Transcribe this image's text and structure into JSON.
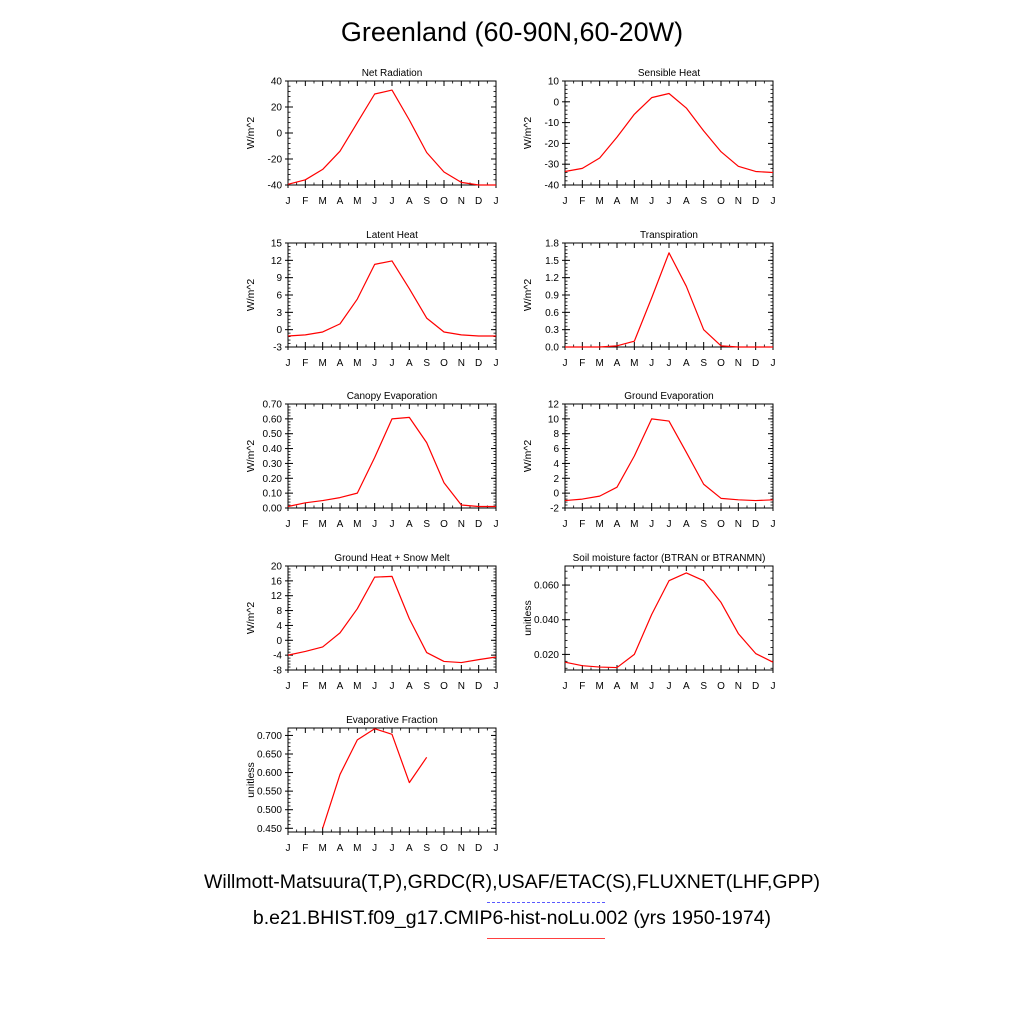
{
  "figure": {
    "title": "Greenland (60-90N,60-20W)",
    "legend": {
      "observations": "Willmott-Matsuura(T,P),GRDC(R),USAF/ETAC(S),FLUXNET(LHF,GPP)",
      "model": "b.e21.BHIST.f09_g17.CMIP6-hist-noLu.002 (yrs 1950-1974)",
      "observations_color": "#5a5aff",
      "model_color": "#ff0000"
    }
  },
  "chart_data": [
    {
      "type": "line",
      "title": "Net Radiation",
      "ylabel": "W/m^2",
      "x": [
        "J",
        "F",
        "M",
        "A",
        "M",
        "J",
        "J",
        "A",
        "S",
        "O",
        "N",
        "D",
        "J"
      ],
      "ylim": [
        -40,
        40
      ],
      "yticks": [
        "-40",
        "-20",
        "0",
        "20",
        "40"
      ],
      "series": [
        {
          "color": "#ff0000",
          "values": [
            -39.5,
            -36,
            -28,
            -14,
            8,
            30,
            33,
            10,
            -15,
            -30,
            -38,
            -40,
            -40
          ]
        }
      ]
    },
    {
      "type": "line",
      "title": "Sensible Heat",
      "ylabel": "W/m^2",
      "x": [
        "J",
        "F",
        "M",
        "A",
        "M",
        "J",
        "J",
        "A",
        "S",
        "O",
        "N",
        "D",
        "J"
      ],
      "ylim": [
        -40,
        10
      ],
      "yticks": [
        "-40",
        "-30",
        "-20",
        "-10",
        "0",
        "10"
      ],
      "series": [
        {
          "color": "#ff0000",
          "values": [
            -33.5,
            -32,
            -27,
            -17,
            -6,
            2,
            4,
            -3,
            -14,
            -24,
            -31,
            -33.5,
            -34
          ]
        }
      ]
    },
    {
      "type": "line",
      "title": "Latent Heat",
      "ylabel": "W/m^2",
      "x": [
        "J",
        "F",
        "M",
        "A",
        "M",
        "J",
        "J",
        "A",
        "S",
        "O",
        "N",
        "D",
        "J"
      ],
      "ylim": [
        -3,
        15
      ],
      "yticks": [
        "-3",
        "0",
        "3",
        "6",
        "9",
        "12",
        "15"
      ],
      "series": [
        {
          "color": "#ff0000",
          "values": [
            -1.1,
            -0.9,
            -0.4,
            1,
            5.3,
            11.3,
            11.9,
            7.1,
            2,
            -0.4,
            -0.9,
            -1.1,
            -1.1
          ]
        }
      ]
    },
    {
      "type": "line",
      "title": "Transpiration",
      "ylabel": "W/m^2",
      "x": [
        "J",
        "F",
        "M",
        "A",
        "M",
        "J",
        "J",
        "A",
        "S",
        "O",
        "N",
        "D",
        "J"
      ],
      "ylim": [
        0,
        1.8
      ],
      "yticks": [
        "0.0",
        "0.3",
        "0.6",
        "0.9",
        "1.2",
        "1.5",
        "1.8"
      ],
      "series": [
        {
          "color": "#ff0000",
          "values": [
            0,
            0,
            0,
            0.02,
            0.1,
            0.85,
            1.63,
            1.05,
            0.3,
            0.02,
            0,
            0,
            0
          ]
        }
      ]
    },
    {
      "type": "line",
      "title": "Canopy Evaporation",
      "ylabel": "W/m^2",
      "x": [
        "J",
        "F",
        "M",
        "A",
        "M",
        "J",
        "J",
        "A",
        "S",
        "O",
        "N",
        "D",
        "J"
      ],
      "ylim": [
        0,
        0.7
      ],
      "yticks": [
        "0.00",
        "0.10",
        "0.20",
        "0.30",
        "0.40",
        "0.50",
        "0.60",
        "0.70"
      ],
      "series": [
        {
          "color": "#ff0000",
          "values": [
            0.01,
            0.035,
            0.05,
            0.07,
            0.1,
            0.34,
            0.6,
            0.61,
            0.44,
            0.17,
            0.02,
            0.01,
            0.01
          ]
        }
      ]
    },
    {
      "type": "line",
      "title": "Ground Evaporation",
      "ylabel": "W/m^2",
      "x": [
        "J",
        "F",
        "M",
        "A",
        "M",
        "J",
        "J",
        "A",
        "S",
        "O",
        "N",
        "D",
        "J"
      ],
      "ylim": [
        -2,
        12
      ],
      "yticks": [
        "-2",
        "0",
        "2",
        "4",
        "6",
        "8",
        "10",
        "12"
      ],
      "series": [
        {
          "color": "#ff0000",
          "values": [
            -1,
            -0.8,
            -0.4,
            0.8,
            5,
            10,
            9.7,
            5.5,
            1.2,
            -0.7,
            -0.9,
            -1,
            -0.9
          ]
        }
      ]
    },
    {
      "type": "line",
      "title": "Ground Heat + Snow Melt",
      "ylabel": "W/m^2",
      "x": [
        "J",
        "F",
        "M",
        "A",
        "M",
        "J",
        "J",
        "A",
        "S",
        "O",
        "N",
        "D",
        "J"
      ],
      "ylim": [
        -8,
        20
      ],
      "yticks": [
        "-8",
        "-4",
        "0",
        "4",
        "8",
        "12",
        "16",
        "20"
      ],
      "series": [
        {
          "color": "#ff0000",
          "values": [
            -4,
            -3,
            -1.8,
            2,
            8.5,
            17,
            17.2,
            5.8,
            -3.3,
            -5.7,
            -6,
            -5.2,
            -4.5
          ]
        }
      ]
    },
    {
      "type": "line",
      "title": "Soil moisture factor (BTRAN or BTRANMN)",
      "ylabel": "unitless",
      "x": [
        "J",
        "F",
        "M",
        "A",
        "M",
        "J",
        "J",
        "A",
        "S",
        "O",
        "N",
        "D",
        "J"
      ],
      "ylim": [
        0.011,
        0.071
      ],
      "yticks": [
        "0.020",
        "0.040",
        "0.060"
      ],
      "yticks_values": [
        0.02,
        0.04,
        0.06
      ],
      "series": [
        {
          "color": "#ff0000",
          "values": [
            0.0155,
            0.0135,
            0.0127,
            0.0124,
            0.02,
            0.043,
            0.0625,
            0.067,
            0.0625,
            0.05,
            0.032,
            0.0205,
            0.0155
          ]
        }
      ]
    },
    {
      "type": "line",
      "title": "Evaporative Fraction",
      "ylabel": "unitless",
      "x": [
        "J",
        "F",
        "M",
        "A",
        "M",
        "J",
        "J",
        "A",
        "S",
        "O",
        "N",
        "D",
        "J"
      ],
      "ylim": [
        0.44,
        0.72
      ],
      "yticks": [
        "0.450",
        "0.500",
        "0.550",
        "0.600",
        "0.650",
        "0.700"
      ],
      "yticks_values": [
        0.45,
        0.5,
        0.55,
        0.6,
        0.65,
        0.7
      ],
      "series": [
        {
          "color": "#ff0000",
          "values": [
            null,
            null,
            0.45,
            0.595,
            0.688,
            0.718,
            0.703,
            0.573,
            0.641,
            null,
            null,
            null,
            null
          ]
        }
      ]
    }
  ]
}
